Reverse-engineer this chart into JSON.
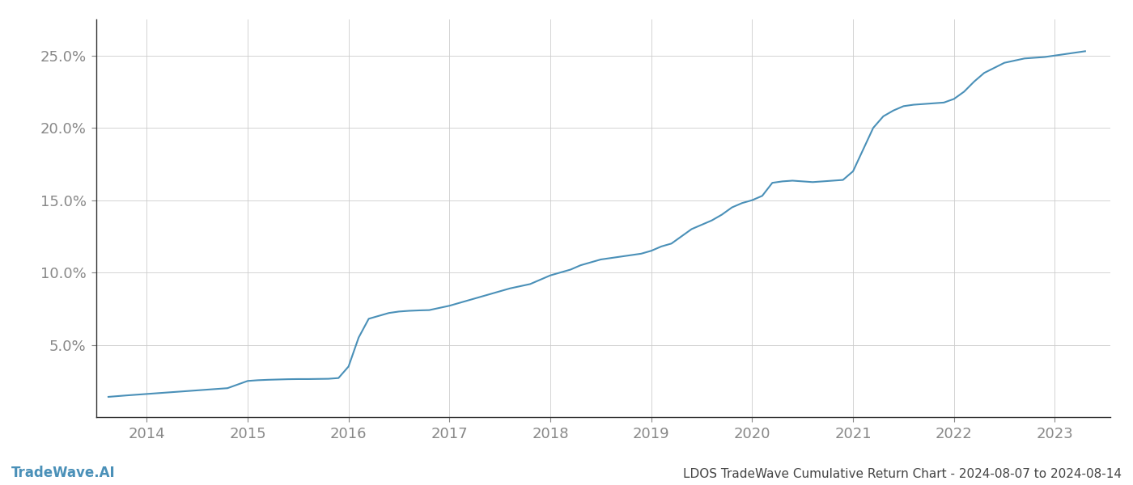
{
  "title": "LDOS TradeWave Cumulative Return Chart - 2024-08-07 to 2024-08-14",
  "watermark": "TradeWave.AI",
  "line_color": "#4a90b8",
  "background_color": "#ffffff",
  "grid_color": "#cccccc",
  "x_values": [
    2013.62,
    2013.8,
    2014.0,
    2014.2,
    2014.4,
    2014.6,
    2014.8,
    2015.0,
    2015.1,
    2015.2,
    2015.3,
    2015.4,
    2015.5,
    2015.6,
    2015.7,
    2015.8,
    2015.9,
    2016.0,
    2016.1,
    2016.2,
    2016.3,
    2016.4,
    2016.5,
    2016.6,
    2016.7,
    2016.8,
    2017.0,
    2017.2,
    2017.4,
    2017.6,
    2017.8,
    2018.0,
    2018.1,
    2018.2,
    2018.3,
    2018.5,
    2018.7,
    2018.9,
    2019.0,
    2019.1,
    2019.2,
    2019.3,
    2019.4,
    2019.5,
    2019.6,
    2019.7,
    2019.8,
    2019.9,
    2020.0,
    2020.1,
    2020.2,
    2020.3,
    2020.4,
    2020.5,
    2020.6,
    2020.7,
    2020.8,
    2020.9,
    2021.0,
    2021.1,
    2021.2,
    2021.3,
    2021.4,
    2021.5,
    2021.6,
    2021.7,
    2021.8,
    2021.9,
    2022.0,
    2022.1,
    2022.2,
    2022.3,
    2022.5,
    2022.7,
    2022.9,
    2023.0,
    2023.1,
    2023.2,
    2023.3
  ],
  "y_values": [
    1.4,
    1.5,
    1.6,
    1.7,
    1.8,
    1.9,
    2.0,
    2.5,
    2.55,
    2.58,
    2.6,
    2.62,
    2.63,
    2.63,
    2.64,
    2.65,
    2.7,
    3.5,
    5.5,
    6.8,
    7.0,
    7.2,
    7.3,
    7.35,
    7.38,
    7.4,
    7.7,
    8.1,
    8.5,
    8.9,
    9.2,
    9.8,
    10.0,
    10.2,
    10.5,
    10.9,
    11.1,
    11.3,
    11.5,
    11.8,
    12.0,
    12.5,
    13.0,
    13.3,
    13.6,
    14.0,
    14.5,
    14.8,
    15.0,
    15.3,
    16.2,
    16.3,
    16.35,
    16.3,
    16.25,
    16.3,
    16.35,
    16.4,
    17.0,
    18.5,
    20.0,
    20.8,
    21.2,
    21.5,
    21.6,
    21.65,
    21.7,
    21.75,
    22.0,
    22.5,
    23.2,
    23.8,
    24.5,
    24.8,
    24.9,
    25.0,
    25.1,
    25.2,
    25.3
  ],
  "xlim": [
    2013.5,
    2023.55
  ],
  "ylim": [
    0,
    27.5
  ],
  "xticks": [
    2014,
    2015,
    2016,
    2017,
    2018,
    2019,
    2020,
    2021,
    2022,
    2023
  ],
  "yticks": [
    5.0,
    10.0,
    15.0,
    20.0,
    25.0
  ],
  "ytick_labels": [
    "5.0%",
    "10.0%",
    "15.0%",
    "20.0%",
    "25.0%"
  ],
  "line_width": 1.5,
  "tick_color": "#888888",
  "tick_fontsize": 13,
  "footer_fontsize": 11,
  "watermark_fontsize": 12,
  "footer_color": "#444444",
  "spine_color": "#333333"
}
